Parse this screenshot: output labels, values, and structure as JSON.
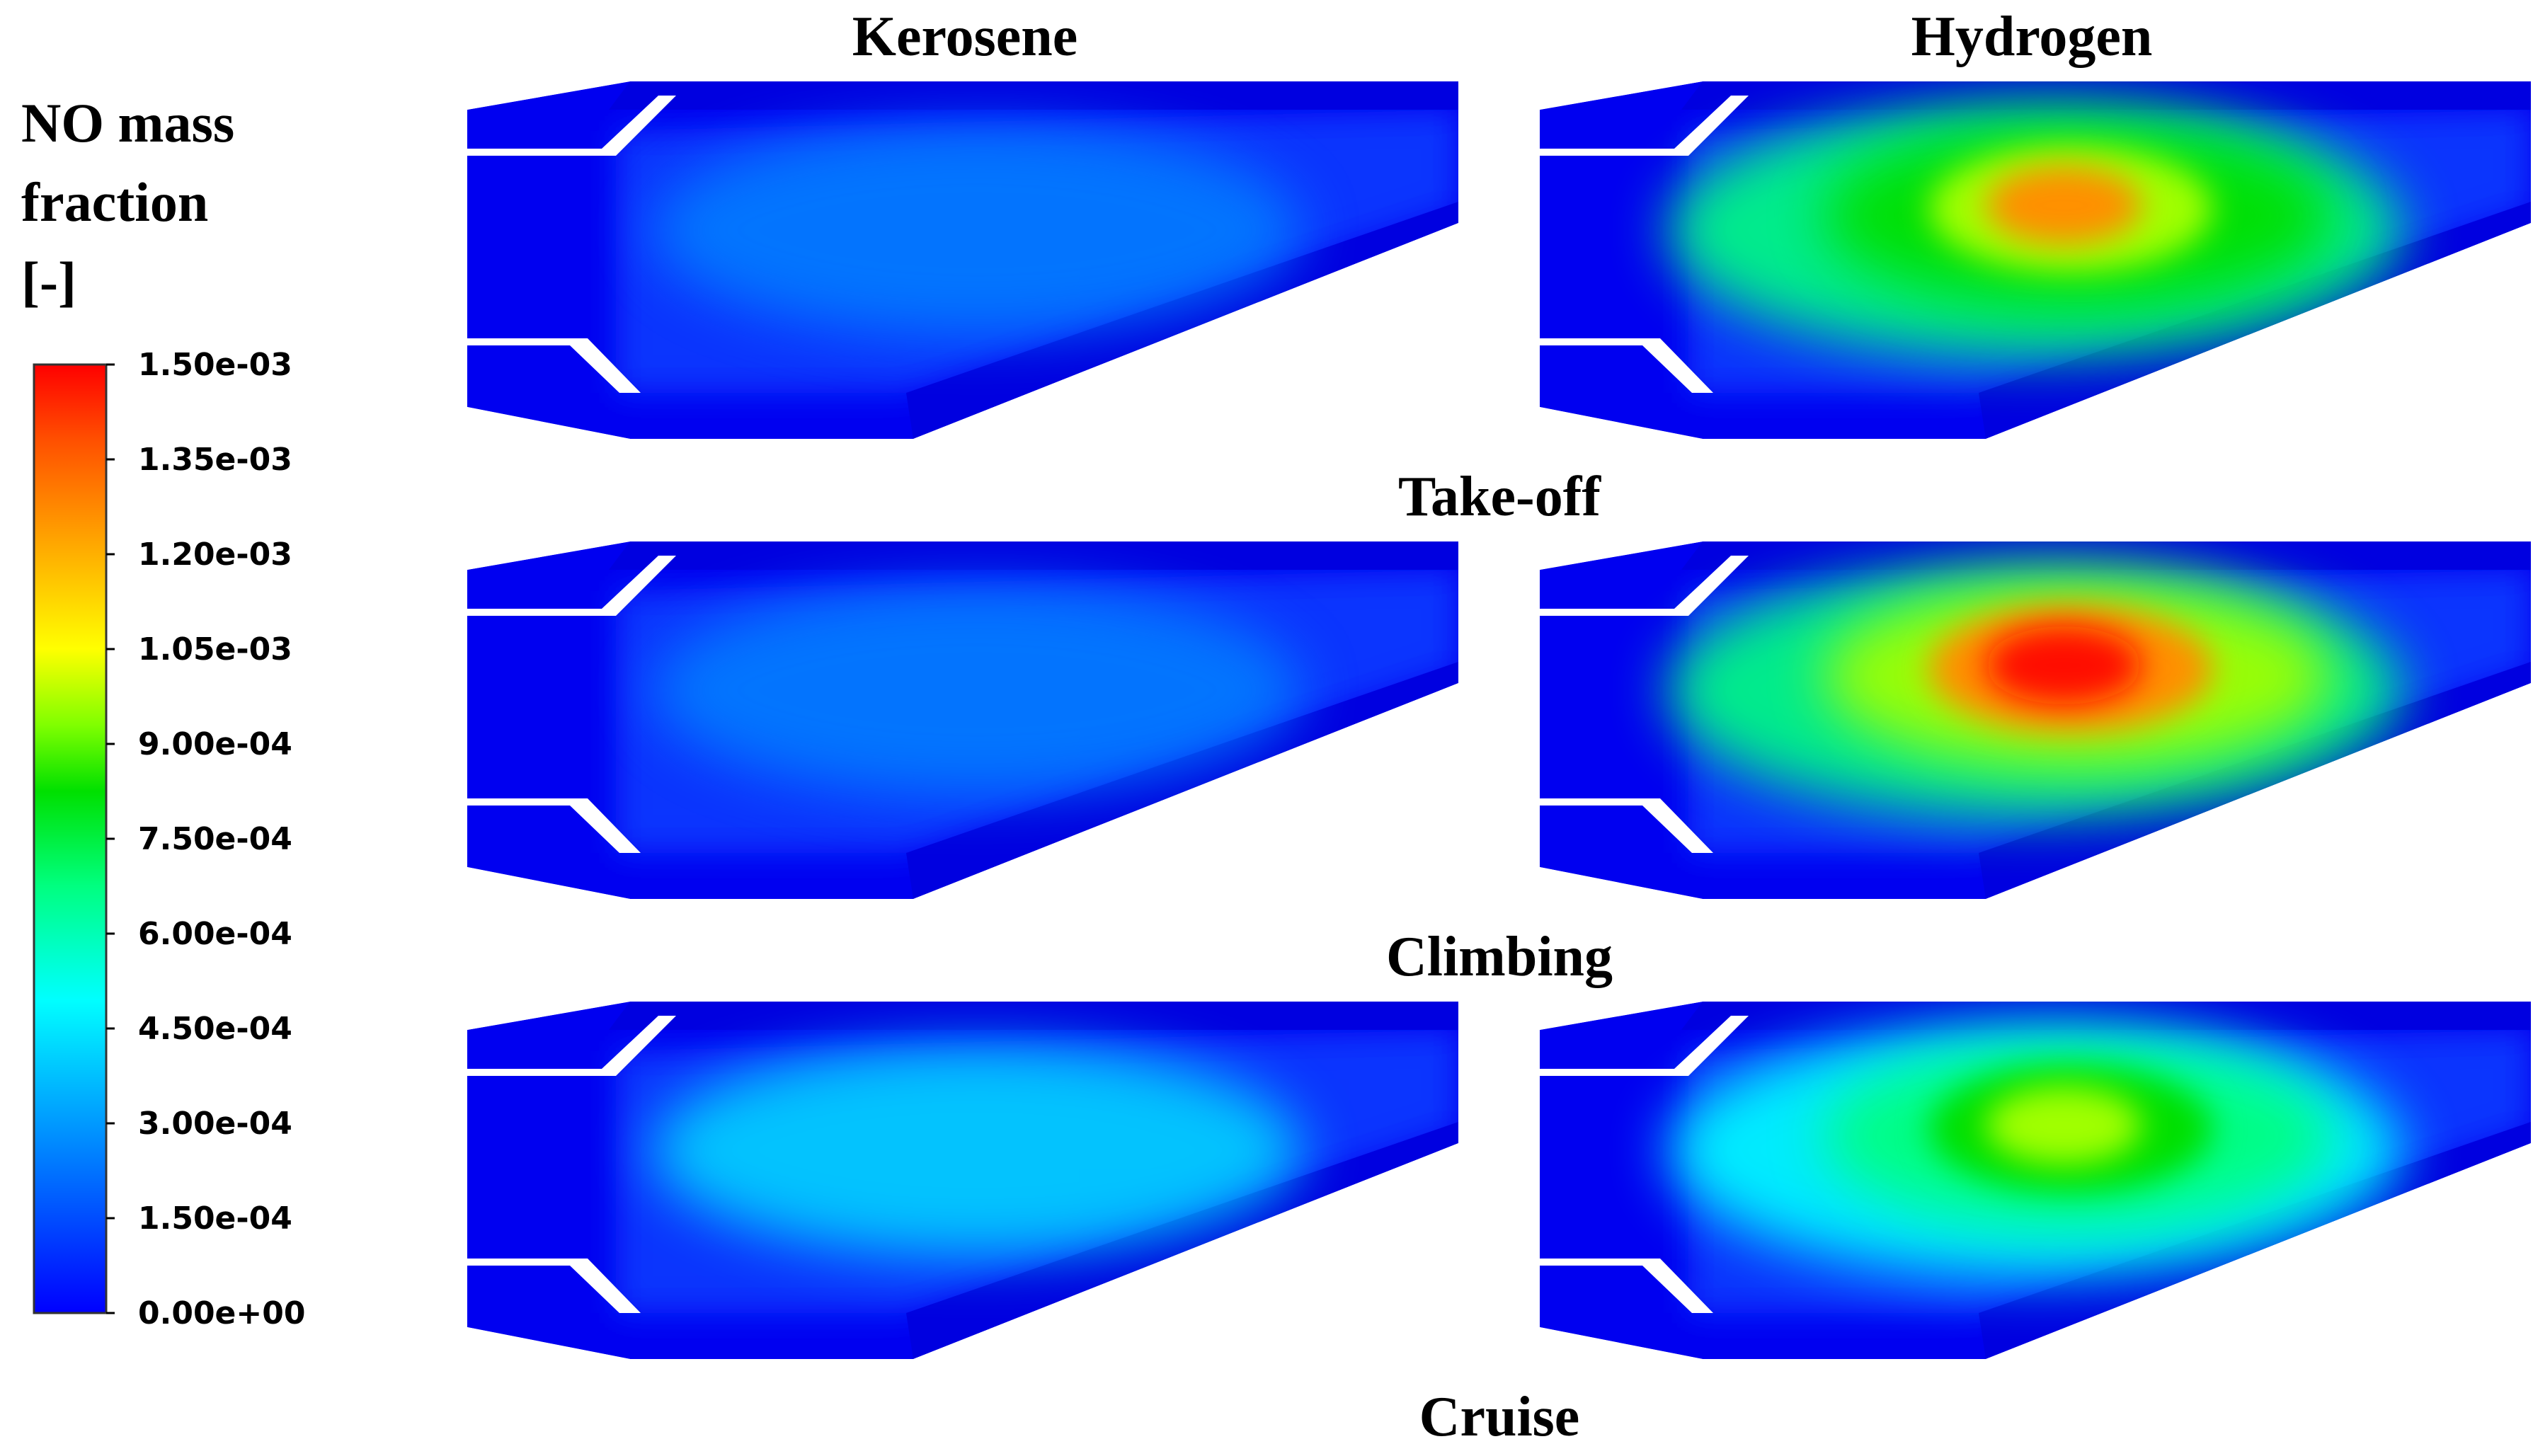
{
  "colorbar": {
    "title_lines": [
      "NO mass",
      "fraction",
      "[-]"
    ],
    "tick_labels": [
      "1.50e-03",
      "1.35e-03",
      "1.20e-03",
      "1.05e-03",
      "9.00e-04",
      "7.50e-04",
      "6.00e-04",
      "4.50e-04",
      "3.00e-04",
      "1.50e-04",
      "0.00e+00"
    ],
    "min": 0.0,
    "max": 0.0015,
    "colormap": [
      "#0000ff",
      "#0080ff",
      "#00ffff",
      "#00ff80",
      "#00ff00",
      "#80ff00",
      "#ffff00",
      "#ff8000",
      "#ff0000"
    ]
  },
  "columns": [
    "Kerosene",
    "Hydrogen"
  ],
  "rows": [
    "Take-off",
    "Climbing",
    "Cruise"
  ],
  "panels": [
    {
      "fuel": "Kerosene",
      "phase": "Take-off",
      "peak_level": 0.12
    },
    {
      "fuel": "Hydrogen",
      "phase": "Take-off",
      "peak_level": 0.8
    },
    {
      "fuel": "Kerosene",
      "phase": "Climbing",
      "peak_level": 0.12
    },
    {
      "fuel": "Hydrogen",
      "phase": "Climbing",
      "peak_level": 1.0
    },
    {
      "fuel": "Kerosene",
      "phase": "Cruise",
      "peak_level": 0.22
    },
    {
      "fuel": "Hydrogen",
      "phase": "Cruise",
      "peak_level": 0.6
    }
  ]
}
